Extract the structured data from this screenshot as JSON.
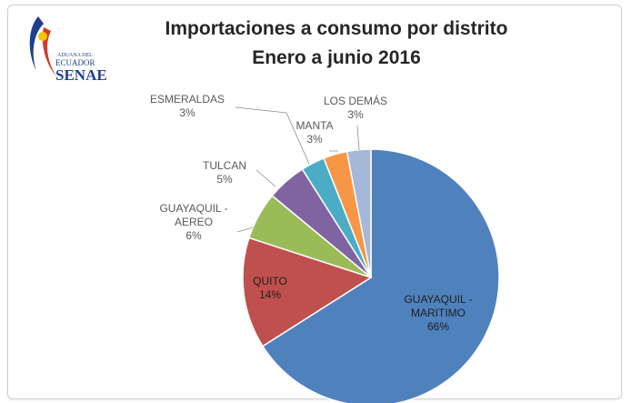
{
  "logo": {
    "line1": "ADUANA DEL",
    "line2": "ECUADOR",
    "line3": "SENAE"
  },
  "chart_data": {
    "type": "pie",
    "title": "Importaciones a consumo por distrito",
    "subtitle": "Enero a junio 2016",
    "slices": [
      {
        "label_lines": [
          "GUAYAQUIL -",
          "MARITIMO"
        ],
        "value": 66,
        "value_label": "66%",
        "color": "#4F81BD"
      },
      {
        "label_lines": [
          "QUITO"
        ],
        "value": 14,
        "value_label": "14%",
        "color": "#C0504D"
      },
      {
        "label_lines": [
          "GUAYAQUIL -",
          "AEREO"
        ],
        "value": 6,
        "value_label": "6%",
        "color": "#9BBB59"
      },
      {
        "label_lines": [
          "TULCAN"
        ],
        "value": 5,
        "value_label": "5%",
        "color": "#8064A2"
      },
      {
        "label_lines": [
          "ESMERALDAS"
        ],
        "value": 3,
        "value_label": "3%",
        "color": "#4BACC6"
      },
      {
        "label_lines": [
          "MANTA"
        ],
        "value": 3,
        "value_label": "3%",
        "color": "#F79646"
      },
      {
        "label_lines": [
          "LOS DEMÁS"
        ],
        "value": 3,
        "value_label": "3%",
        "color": "#A5B8DA"
      }
    ],
    "legend": "none"
  }
}
